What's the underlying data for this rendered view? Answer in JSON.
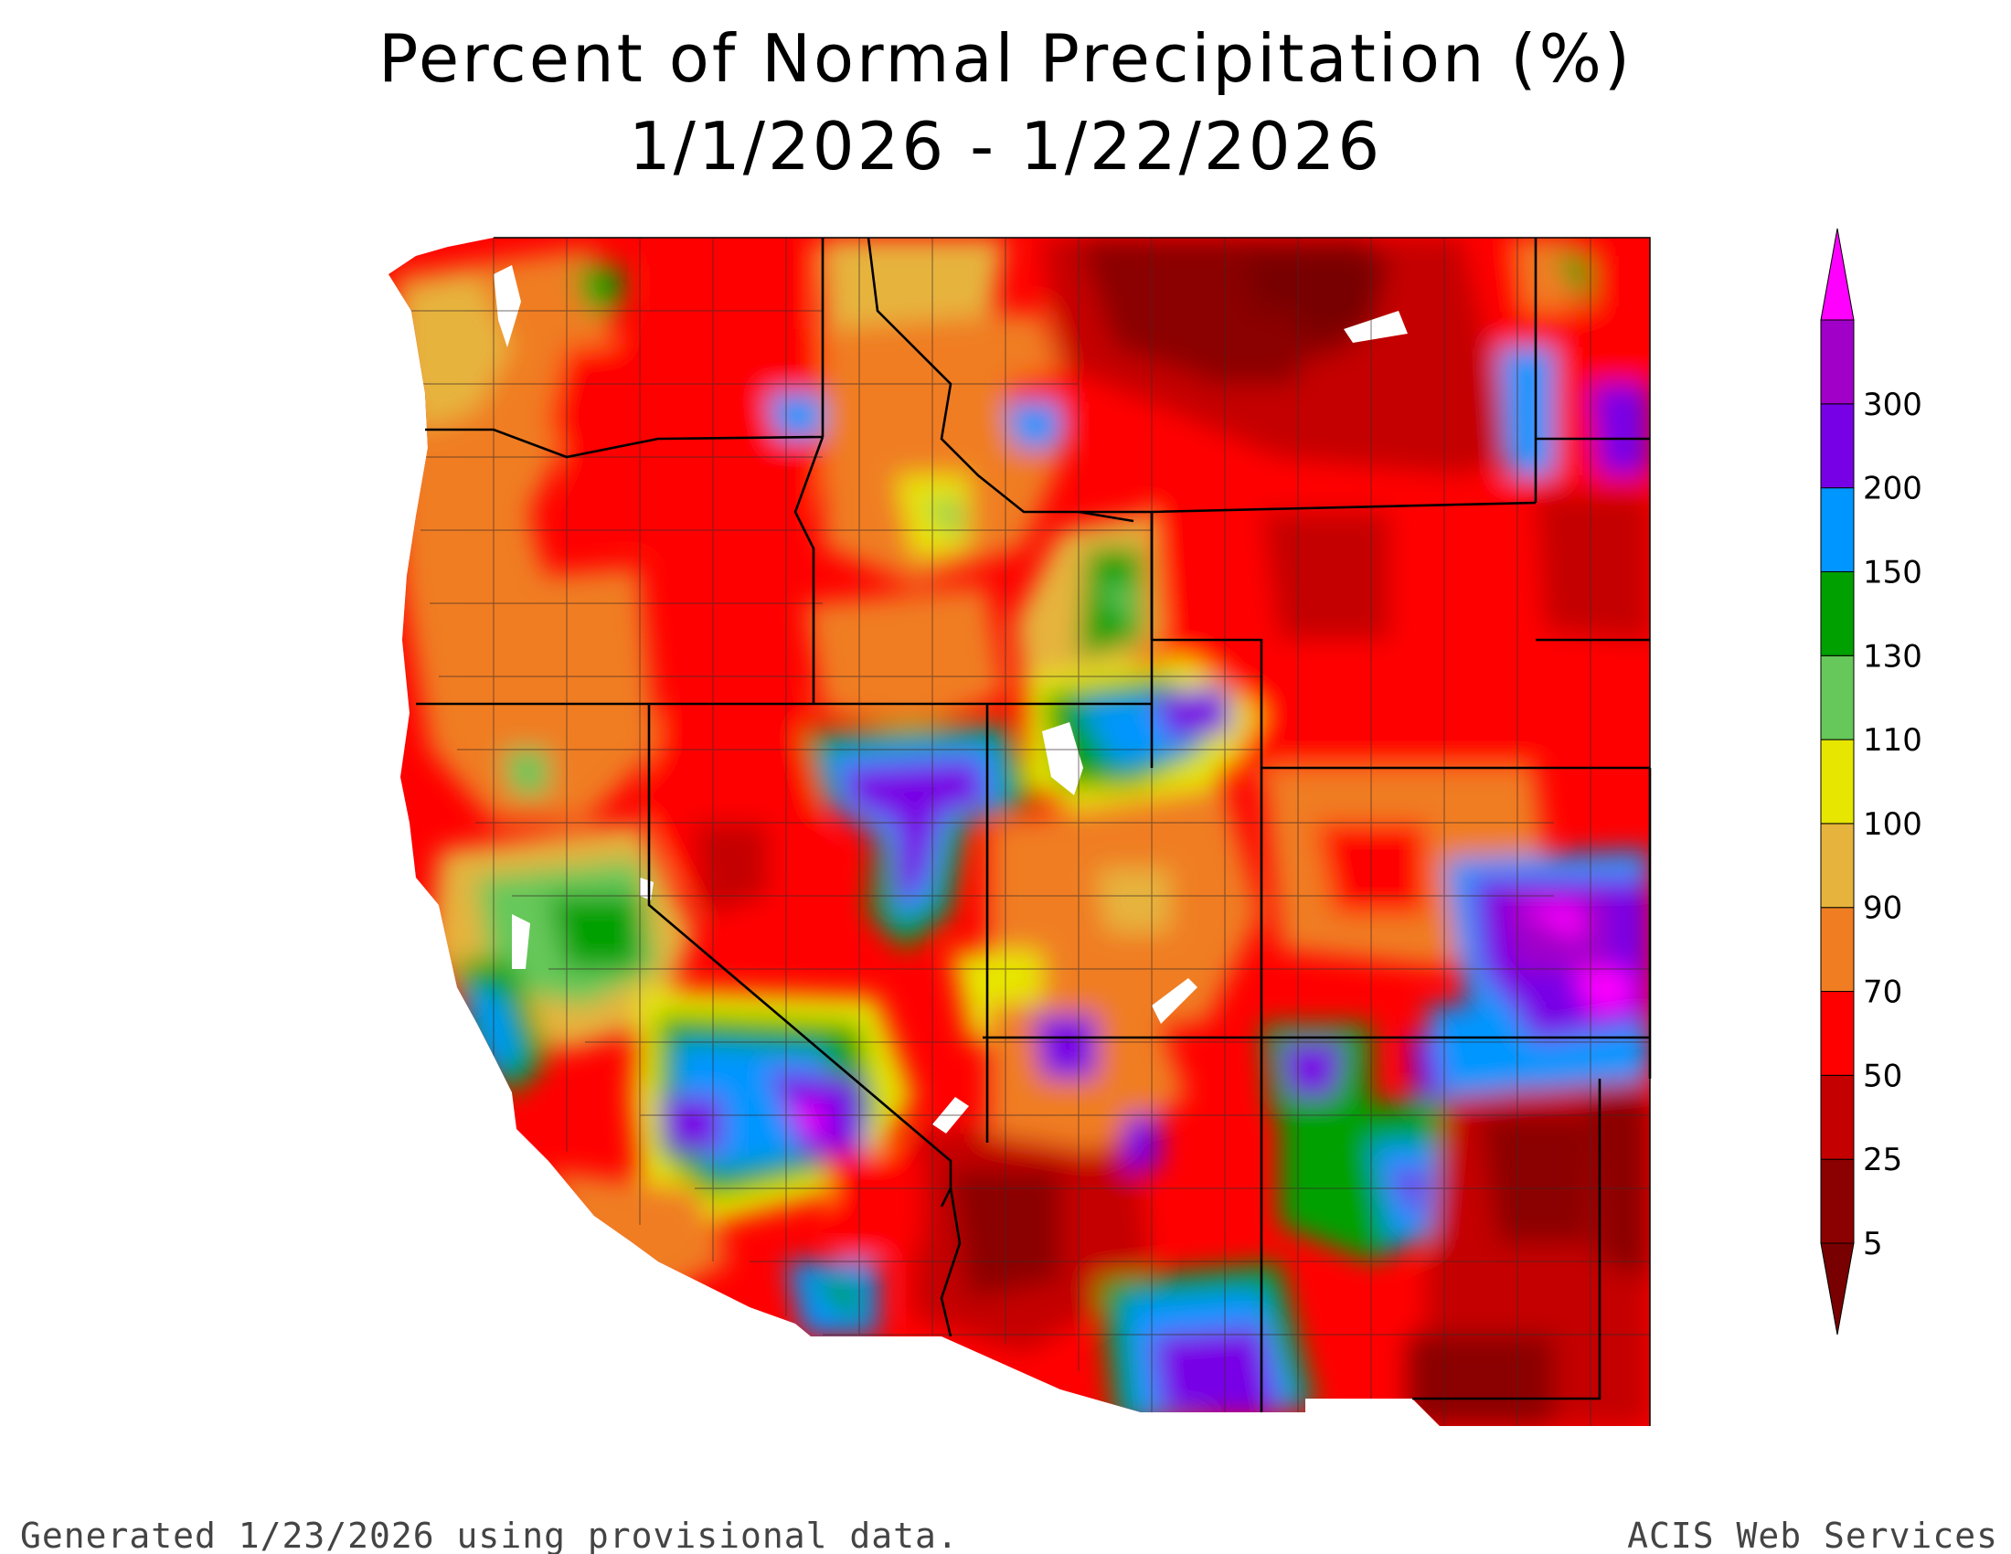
{
  "title": "Percent of Normal Precipitation (%)",
  "subtitle": "1/1/2026 - 1/22/2026",
  "footer": {
    "left": "Generated 1/23/2026 using provisional data.",
    "right": "ACIS Web Services"
  },
  "legend": {
    "bins": [
      {
        "label": "5",
        "color": "#8b0000"
      },
      {
        "label": "25",
        "color": "#c40000"
      },
      {
        "label": "50",
        "color": "#ff0000"
      },
      {
        "label": "70",
        "color": "#f07d21"
      },
      {
        "label": "90",
        "color": "#e6b43c"
      },
      {
        "label": "100",
        "color": "#e6e600"
      },
      {
        "label": "110",
        "color": "#66c85a"
      },
      {
        "label": "130",
        "color": "#00a000"
      },
      {
        "label": "150",
        "color": "#0096ff"
      },
      {
        "label": "200",
        "color": "#7800e6"
      },
      {
        "label": "300",
        "color": "#a000c8"
      }
    ],
    "below_color": "#780000",
    "above_color": "#ff00ff"
  },
  "colors": {
    "state_border": "#000000",
    "county_border": "#3a2a2a",
    "water": "#ffffff"
  }
}
